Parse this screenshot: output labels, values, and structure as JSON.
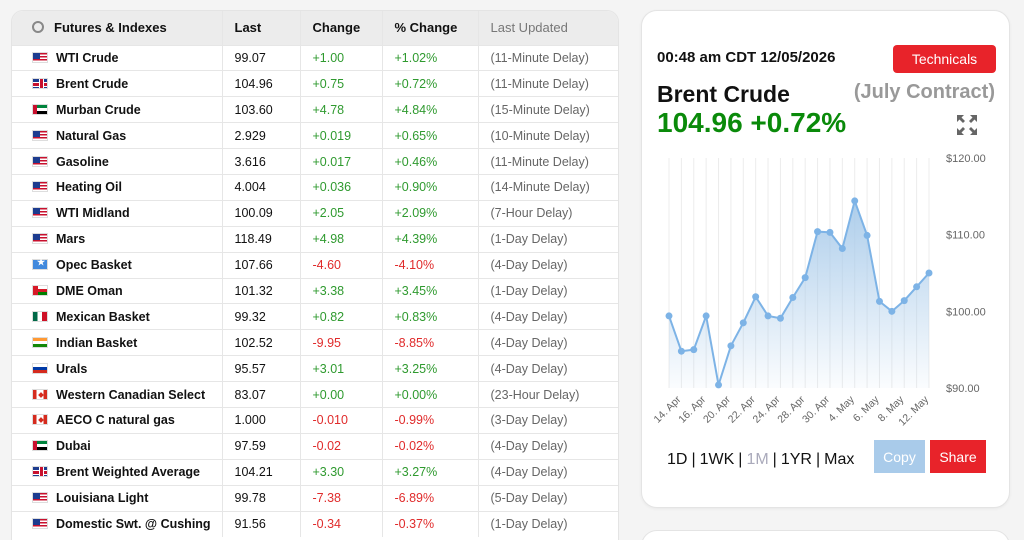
{
  "table": {
    "headers": {
      "name": "Futures & Indexes",
      "last": "Last",
      "change": "Change",
      "pct": "% Change",
      "updated": "Last Updated"
    },
    "rows": [
      {
        "flag": "US",
        "name": "WTI Crude",
        "last": "99.07",
        "change": "+1.00",
        "pct": "+1.02%",
        "updated": "(11-Minute Delay)",
        "dir": "pos"
      },
      {
        "flag": "UK",
        "name": "Brent Crude",
        "last": "104.96",
        "change": "+0.75",
        "pct": "+0.72%",
        "updated": "(11-Minute Delay)",
        "dir": "pos"
      },
      {
        "flag": "AE",
        "name": "Murban Crude",
        "last": "103.60",
        "change": "+4.78",
        "pct": "+4.84%",
        "updated": "(15-Minute Delay)",
        "dir": "pos"
      },
      {
        "flag": "US",
        "name": "Natural Gas",
        "last": "2.929",
        "change": "+0.019",
        "pct": "+0.65%",
        "updated": "(10-Minute Delay)",
        "dir": "pos"
      },
      {
        "flag": "US",
        "name": "Gasoline",
        "last": "3.616",
        "change": "+0.017",
        "pct": "+0.46%",
        "updated": "(11-Minute Delay)",
        "dir": "pos"
      },
      {
        "flag": "US",
        "name": "Heating Oil",
        "last": "4.004",
        "change": "+0.036",
        "pct": "+0.90%",
        "updated": "(14-Minute Delay)",
        "dir": "pos"
      },
      {
        "flag": "US",
        "name": "WTI Midland",
        "last": "100.09",
        "change": "+2.05",
        "pct": "+2.09%",
        "updated": "(7-Hour Delay)",
        "dir": "pos"
      },
      {
        "flag": "US",
        "name": "Mars",
        "last": "118.49",
        "change": "+4.98",
        "pct": "+4.39%",
        "updated": "(1-Day Delay)",
        "dir": "pos"
      },
      {
        "flag": "SO",
        "name": "Opec Basket",
        "last": "107.66",
        "change": "-4.60",
        "pct": "-4.10%",
        "updated": "(4-Day Delay)",
        "dir": "neg"
      },
      {
        "flag": "OM",
        "name": "DME Oman",
        "last": "101.32",
        "change": "+3.38",
        "pct": "+3.45%",
        "updated": "(1-Day Delay)",
        "dir": "pos"
      },
      {
        "flag": "MX",
        "name": "Mexican Basket",
        "last": "99.32",
        "change": "+0.82",
        "pct": "+0.83%",
        "updated": "(4-Day Delay)",
        "dir": "pos"
      },
      {
        "flag": "IN",
        "name": "Indian Basket",
        "last": "102.52",
        "change": "-9.95",
        "pct": "-8.85%",
        "updated": "(4-Day Delay)",
        "dir": "neg"
      },
      {
        "flag": "RU",
        "name": "Urals",
        "last": "95.57",
        "change": "+3.01",
        "pct": "+3.25%",
        "updated": "(4-Day Delay)",
        "dir": "pos"
      },
      {
        "flag": "CA",
        "name": "Western Canadian Select",
        "last": "83.07",
        "change": "+0.00",
        "pct": "+0.00%",
        "updated": "(23-Hour Delay)",
        "dir": "pos"
      },
      {
        "flag": "CA",
        "name": "AECO C natural gas",
        "last": "1.000",
        "change": "-0.010",
        "pct": "-0.99%",
        "updated": "(3-Day Delay)",
        "dir": "neg"
      },
      {
        "flag": "AE",
        "name": "Dubai",
        "last": "97.59",
        "change": "-0.02",
        "pct": "-0.02%",
        "updated": "(4-Day Delay)",
        "dir": "neg"
      },
      {
        "flag": "UK",
        "name": "Brent Weighted Average",
        "last": "104.21",
        "change": "+3.30",
        "pct": "+3.27%",
        "updated": "(4-Day Delay)",
        "dir": "pos"
      },
      {
        "flag": "US",
        "name": "Louisiana Light",
        "last": "99.78",
        "change": "-7.38",
        "pct": "-6.89%",
        "updated": "(5-Day Delay)",
        "dir": "neg"
      },
      {
        "flag": "US",
        "name": "Domestic Swt. @ Cushing",
        "last": "91.56",
        "change": "-0.34",
        "pct": "-0.37%",
        "updated": "(1-Day Delay)",
        "dir": "neg"
      }
    ]
  },
  "panel": {
    "timestamp": "00:48 am CDT 12/05/2026",
    "technicals_label": "Technicals",
    "commodity_name": "Brent Crude",
    "contract": "(July Contract)",
    "price_line": "104.96 +0.72%",
    "price_color": "#0a8a0a",
    "expand_icon": "expand-arrows-icon",
    "ranges": [
      "1D",
      "1WK",
      "1M",
      "1YR",
      "Max"
    ],
    "active_range": "1M",
    "copy_label": "Copy",
    "share_label": "Share"
  },
  "chart_data": {
    "type": "area",
    "x": [
      "13. Apr",
      "14. Apr",
      "15. Apr",
      "16. Apr",
      "17. Apr",
      "20. Apr",
      "21. Apr",
      "22. Apr",
      "23. Apr",
      "24. Apr",
      "27. Apr",
      "28. Apr",
      "29. Apr",
      "30. Apr",
      "1. May",
      "4. May",
      "5. May",
      "6. May",
      "7. May",
      "8. May",
      "11. May",
      "12. May"
    ],
    "x_tick_labels": [
      "14. Apr",
      "16. Apr",
      "20. Apr",
      "22. Apr",
      "24. Apr",
      "28. Apr",
      "30. Apr",
      "4. May",
      "6. May",
      "8. May",
      "12. May"
    ],
    "series": [
      {
        "values": [
          99.4,
          94.8,
          95.0,
          99.4,
          90.4,
          95.5,
          98.5,
          101.9,
          99.4,
          99.1,
          101.8,
          104.4,
          110.4,
          110.3,
          108.2,
          114.4,
          109.9,
          101.3,
          100.0,
          101.4,
          103.2,
          105.0
        ]
      }
    ],
    "y_ticks": [
      "$120.00",
      "$110.00",
      "$100.00",
      "$90.00"
    ],
    "ylim": [
      90,
      120
    ],
    "xlabel": "",
    "ylabel": "",
    "grid": true,
    "line_color": "#7db3e6",
    "fill_color": "#a9cbea"
  }
}
